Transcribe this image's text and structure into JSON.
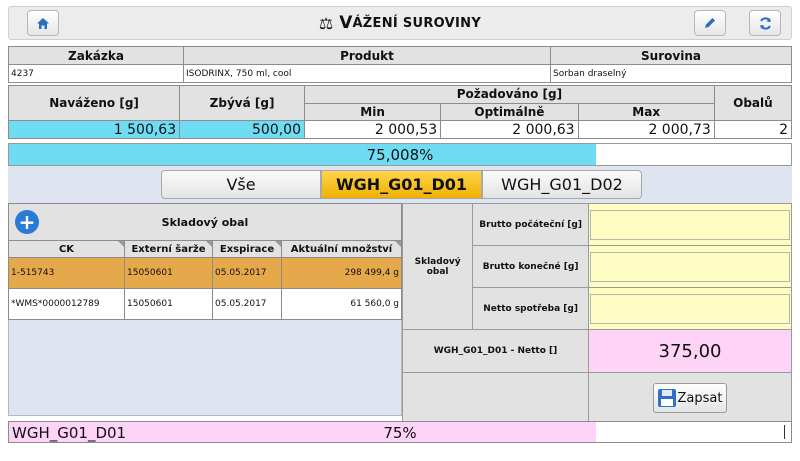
{
  "header": {
    "title_icon": "scale-icon",
    "title_first": "V",
    "title_rest": "ÁŽENÍ SUROVINY",
    "home_icon": "home-icon",
    "edit_icon": "pencil-icon",
    "refresh_icon": "refresh-icon"
  },
  "order": {
    "headers": [
      "Zakázka",
      "Produkt",
      "Surovina"
    ],
    "zakazka": "4237",
    "produkt": "ISODRINX, 750 ml, cool",
    "surovina": "Sorban draselný"
  },
  "weights": {
    "navazeno_label": "Naváženo [g]",
    "zbyva_label": "Zbývá [g]",
    "pozadovano_label": "Požadováno [g]",
    "min_label": "Min",
    "opt_label": "Optimálně",
    "max_label": "Max",
    "obalu_label": "Obalů",
    "navazeno": "1 500,63",
    "zbyva": "500,00",
    "min": "2 000,53",
    "opt": "2 000,63",
    "max": "2 000,73",
    "obalu": "2"
  },
  "progress": {
    "text": "75,008%",
    "fraction": 0.75008
  },
  "tabs": [
    {
      "label": "Vše",
      "active": false
    },
    {
      "label": "WGH_G01_D01",
      "active": true
    },
    {
      "label": "WGH_G01_D02",
      "active": false
    }
  ],
  "stock": {
    "title": "Skladový obal",
    "columns": [
      "CK",
      "Externí šarže",
      "Exspirace",
      "Aktuální množství"
    ],
    "rows": [
      {
        "ck": "1-515743",
        "batch": "15050601",
        "exp": "05.05.2017",
        "qty": "298 499,4 g",
        "selected": true
      },
      {
        "ck": "*WMS*0000012789",
        "batch": "15050601",
        "exp": "05.05.2017",
        "qty": "61 560,0 g",
        "selected": false
      }
    ]
  },
  "form": {
    "group_label": "Skladový obal",
    "brutto_start_label": "Brutto počáteční [g]",
    "brutto_end_label": "Brutto konečné [g]",
    "netto_label": "Netto spotřeba [g]",
    "brutto_start": "",
    "brutto_end": "",
    "netto": "",
    "netto_total_label": "WGH_G01_D01 - Netto []",
    "netto_total_value": "375,00",
    "save_label": "Zapsat"
  },
  "footer": {
    "label": "WGH_G01_D01",
    "percent": "75%",
    "fraction": 0.75
  },
  "colors": {
    "cyan": "#6fdcf3",
    "active_tab": "#f5c000",
    "selected_row": "#e5a84a",
    "pink": "#fdd3f7",
    "yellow_input": "#fdfdc3"
  }
}
